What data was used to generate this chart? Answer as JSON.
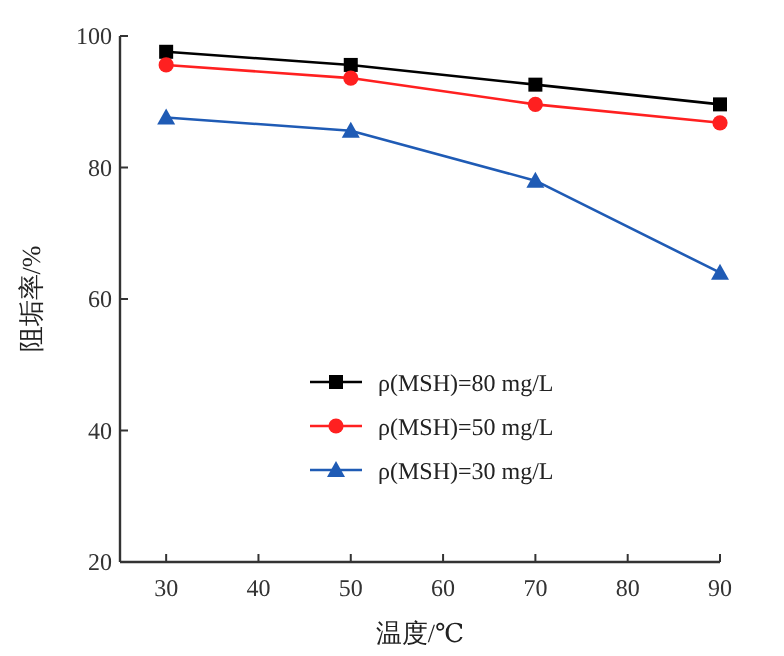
{
  "chart_data": {
    "type": "line",
    "xlabel": "温度/℃",
    "ylabel": "阻垢率/%",
    "x": [
      30,
      50,
      70,
      90
    ],
    "xlim": [
      25,
      90
    ],
    "xticks": [
      30,
      40,
      50,
      60,
      70,
      80,
      90
    ],
    "ylim": [
      20,
      100
    ],
    "yticks": [
      20,
      40,
      60,
      80,
      100
    ],
    "grid": false,
    "legend": "bottom",
    "line_style": "solid",
    "series": [
      {
        "name": "ρ(MSH)=80 mg/L",
        "color": "#000000",
        "marker": "square",
        "values": [
          97.6,
          95.6,
          92.6,
          89.6
        ]
      },
      {
        "name": "ρ(MSH)=50 mg/L",
        "color": "#ff2020",
        "marker": "circle",
        "values": [
          95.6,
          93.6,
          89.6,
          86.8
        ]
      },
      {
        "name": "ρ(MSH)=30 mg/L",
        "color": "#1f5bb5",
        "marker": "triangle",
        "values": [
          87.6,
          85.6,
          78,
          64
        ]
      }
    ]
  }
}
